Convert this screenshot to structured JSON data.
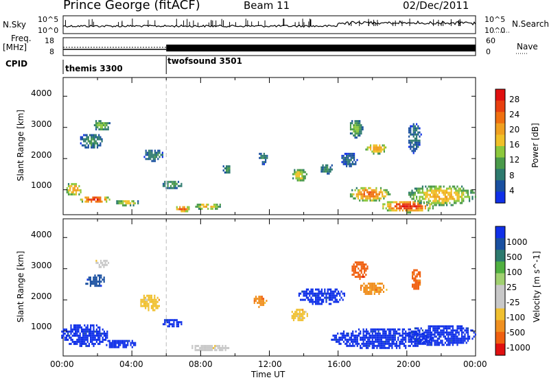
{
  "header": {
    "station": "Prince George (fitACF)",
    "beam": "Beam 11",
    "date": "02/Dec/2011"
  },
  "labels": {
    "nsky": "N.Sky",
    "freq": "Freq.",
    "mhz": "[MHz]",
    "cpid": "CPID",
    "nsearch": "N.Search",
    "nave": "Nave",
    "sky_ticks": [
      "10^5",
      "10^0"
    ],
    "search_ticks": [
      "10^5",
      "10^0"
    ],
    "freq_ticks": [
      "18",
      "8"
    ],
    "nave_ticks": [
      "60",
      "0"
    ]
  },
  "cpid_segments": [
    {
      "start_hour": 0,
      "name": "themis 3300"
    },
    {
      "start_hour": 6,
      "name": "twofsound 3501"
    }
  ],
  "colors": {
    "power_scale": [
      "#1030e8",
      "#1a50a0",
      "#2d7a6e",
      "#4a9a4a",
      "#8cc83c",
      "#f0c028",
      "#f0a020",
      "#f07010",
      "#e84010",
      "#e01010"
    ],
    "velocity_scale": [
      "#1030e8",
      "#1a50a0",
      "#2d7a6e",
      "#50b040",
      "#a0d070",
      "#c8c8c8",
      "#c8c8c8",
      "#f0c030",
      "#f09020",
      "#f06010",
      "#e01010"
    ]
  },
  "chart_data": [
    {
      "type": "heatmap",
      "panel": "power",
      "ylabel": "Slant Range [km]",
      "yticks": [
        "1000",
        "2000",
        "3000",
        "4000"
      ],
      "ylim": [
        200,
        4600
      ],
      "xlim": [
        0,
        24
      ],
      "colorbar": {
        "label": "Power [dB]",
        "ticks": [
          "4",
          "8",
          "12",
          "16",
          "20",
          "24",
          "28"
        ],
        "range": [
          0,
          32
        ]
      },
      "blobs": [
        {
          "t": 0.6,
          "r": 1050,
          "dt": 0.5,
          "dr": 230,
          "val": 22
        },
        {
          "t": 1.8,
          "r": 720,
          "dt": 0.9,
          "dr": 130,
          "val": 29
        },
        {
          "t": 3.7,
          "r": 620,
          "dt": 0.7,
          "dr": 110,
          "val": 18
        },
        {
          "t": 1.6,
          "r": 2600,
          "dt": 0.7,
          "dr": 250,
          "val": 10
        },
        {
          "t": 2.2,
          "r": 3100,
          "dt": 0.5,
          "dr": 200,
          "val": 14
        },
        {
          "t": 5.2,
          "r": 2150,
          "dt": 0.6,
          "dr": 200,
          "val": 9
        },
        {
          "t": 6.3,
          "r": 1200,
          "dt": 0.6,
          "dr": 150,
          "val": 12
        },
        {
          "t": 6.9,
          "r": 420,
          "dt": 0.5,
          "dr": 120,
          "val": 26
        },
        {
          "t": 8.4,
          "r": 500,
          "dt": 0.8,
          "dr": 120,
          "val": 20
        },
        {
          "t": 9.5,
          "r": 1700,
          "dt": 0.3,
          "dr": 150,
          "val": 10
        },
        {
          "t": 11.6,
          "r": 2050,
          "dt": 0.3,
          "dr": 200,
          "val": 9
        },
        {
          "t": 13.7,
          "r": 1500,
          "dt": 0.45,
          "dr": 230,
          "val": 18
        },
        {
          "t": 15.3,
          "r": 1700,
          "dt": 0.4,
          "dr": 180,
          "val": 10
        },
        {
          "t": 17.8,
          "r": 900,
          "dt": 1.2,
          "dr": 250,
          "val": 25
        },
        {
          "t": 20.0,
          "r": 500,
          "dt": 1.6,
          "dr": 200,
          "val": 29
        },
        {
          "t": 22.0,
          "r": 850,
          "dt": 2.0,
          "dr": 350,
          "val": 20
        },
        {
          "t": 17.0,
          "r": 3000,
          "dt": 0.4,
          "dr": 300,
          "val": 14
        },
        {
          "t": 18.2,
          "r": 2350,
          "dt": 0.7,
          "dr": 170,
          "val": 22
        },
        {
          "t": 20.4,
          "r": 2700,
          "dt": 0.4,
          "dr": 500,
          "val": 8
        },
        {
          "t": 16.6,
          "r": 2000,
          "dt": 0.5,
          "dr": 250,
          "val": 7
        }
      ]
    },
    {
      "type": "heatmap",
      "panel": "velocity",
      "ylabel": "Slant Range [km]",
      "yticks": [
        "1000",
        "2000",
        "3000",
        "4000"
      ],
      "ylim": [
        200,
        4600
      ],
      "xlim": [
        0,
        24
      ],
      "xticks": [
        "00:00",
        "04:00",
        "08:00",
        "12:00",
        "16:00",
        "20:00",
        "00:00"
      ],
      "xlabel": "Time UT",
      "colorbar": {
        "label": "Velocity [m s^-1]",
        "ticks": [
          "1000",
          "500",
          "100",
          "25",
          "-25",
          "-100",
          "-500",
          "-1000"
        ]
      },
      "blobs": [
        {
          "t": 1.2,
          "r": 900,
          "dt": 1.4,
          "dr": 380,
          "val": 0
        },
        {
          "t": 3.3,
          "r": 620,
          "dt": 0.9,
          "dr": 160,
          "val": 0
        },
        {
          "t": 1.8,
          "r": 2650,
          "dt": 0.6,
          "dr": 230,
          "val": 1
        },
        {
          "t": 2.2,
          "r": 3200,
          "dt": 0.4,
          "dr": 150,
          "val": 6
        },
        {
          "t": 5.0,
          "r": 1950,
          "dt": 0.6,
          "dr": 280,
          "val": 7
        },
        {
          "t": 6.3,
          "r": 1300,
          "dt": 0.6,
          "dr": 150,
          "val": 0
        },
        {
          "t": 8.5,
          "r": 500,
          "dt": 1.2,
          "dr": 120,
          "val": 6
        },
        {
          "t": 13.7,
          "r": 1550,
          "dt": 0.5,
          "dr": 230,
          "val": 7
        },
        {
          "t": 11.4,
          "r": 2000,
          "dt": 0.4,
          "dr": 200,
          "val": 8
        },
        {
          "t": 15.0,
          "r": 2150,
          "dt": 1.4,
          "dr": 280,
          "val": 0
        },
        {
          "t": 18.5,
          "r": 800,
          "dt": 3.0,
          "dr": 350,
          "val": 0
        },
        {
          "t": 22.0,
          "r": 900,
          "dt": 2.0,
          "dr": 350,
          "val": 0
        },
        {
          "t": 18.0,
          "r": 2400,
          "dt": 0.8,
          "dr": 220,
          "val": 8
        },
        {
          "t": 17.2,
          "r": 3000,
          "dt": 0.5,
          "dr": 300,
          "val": 9
        },
        {
          "t": 20.5,
          "r": 2700,
          "dt": 0.3,
          "dr": 350,
          "val": 9
        }
      ]
    }
  ]
}
